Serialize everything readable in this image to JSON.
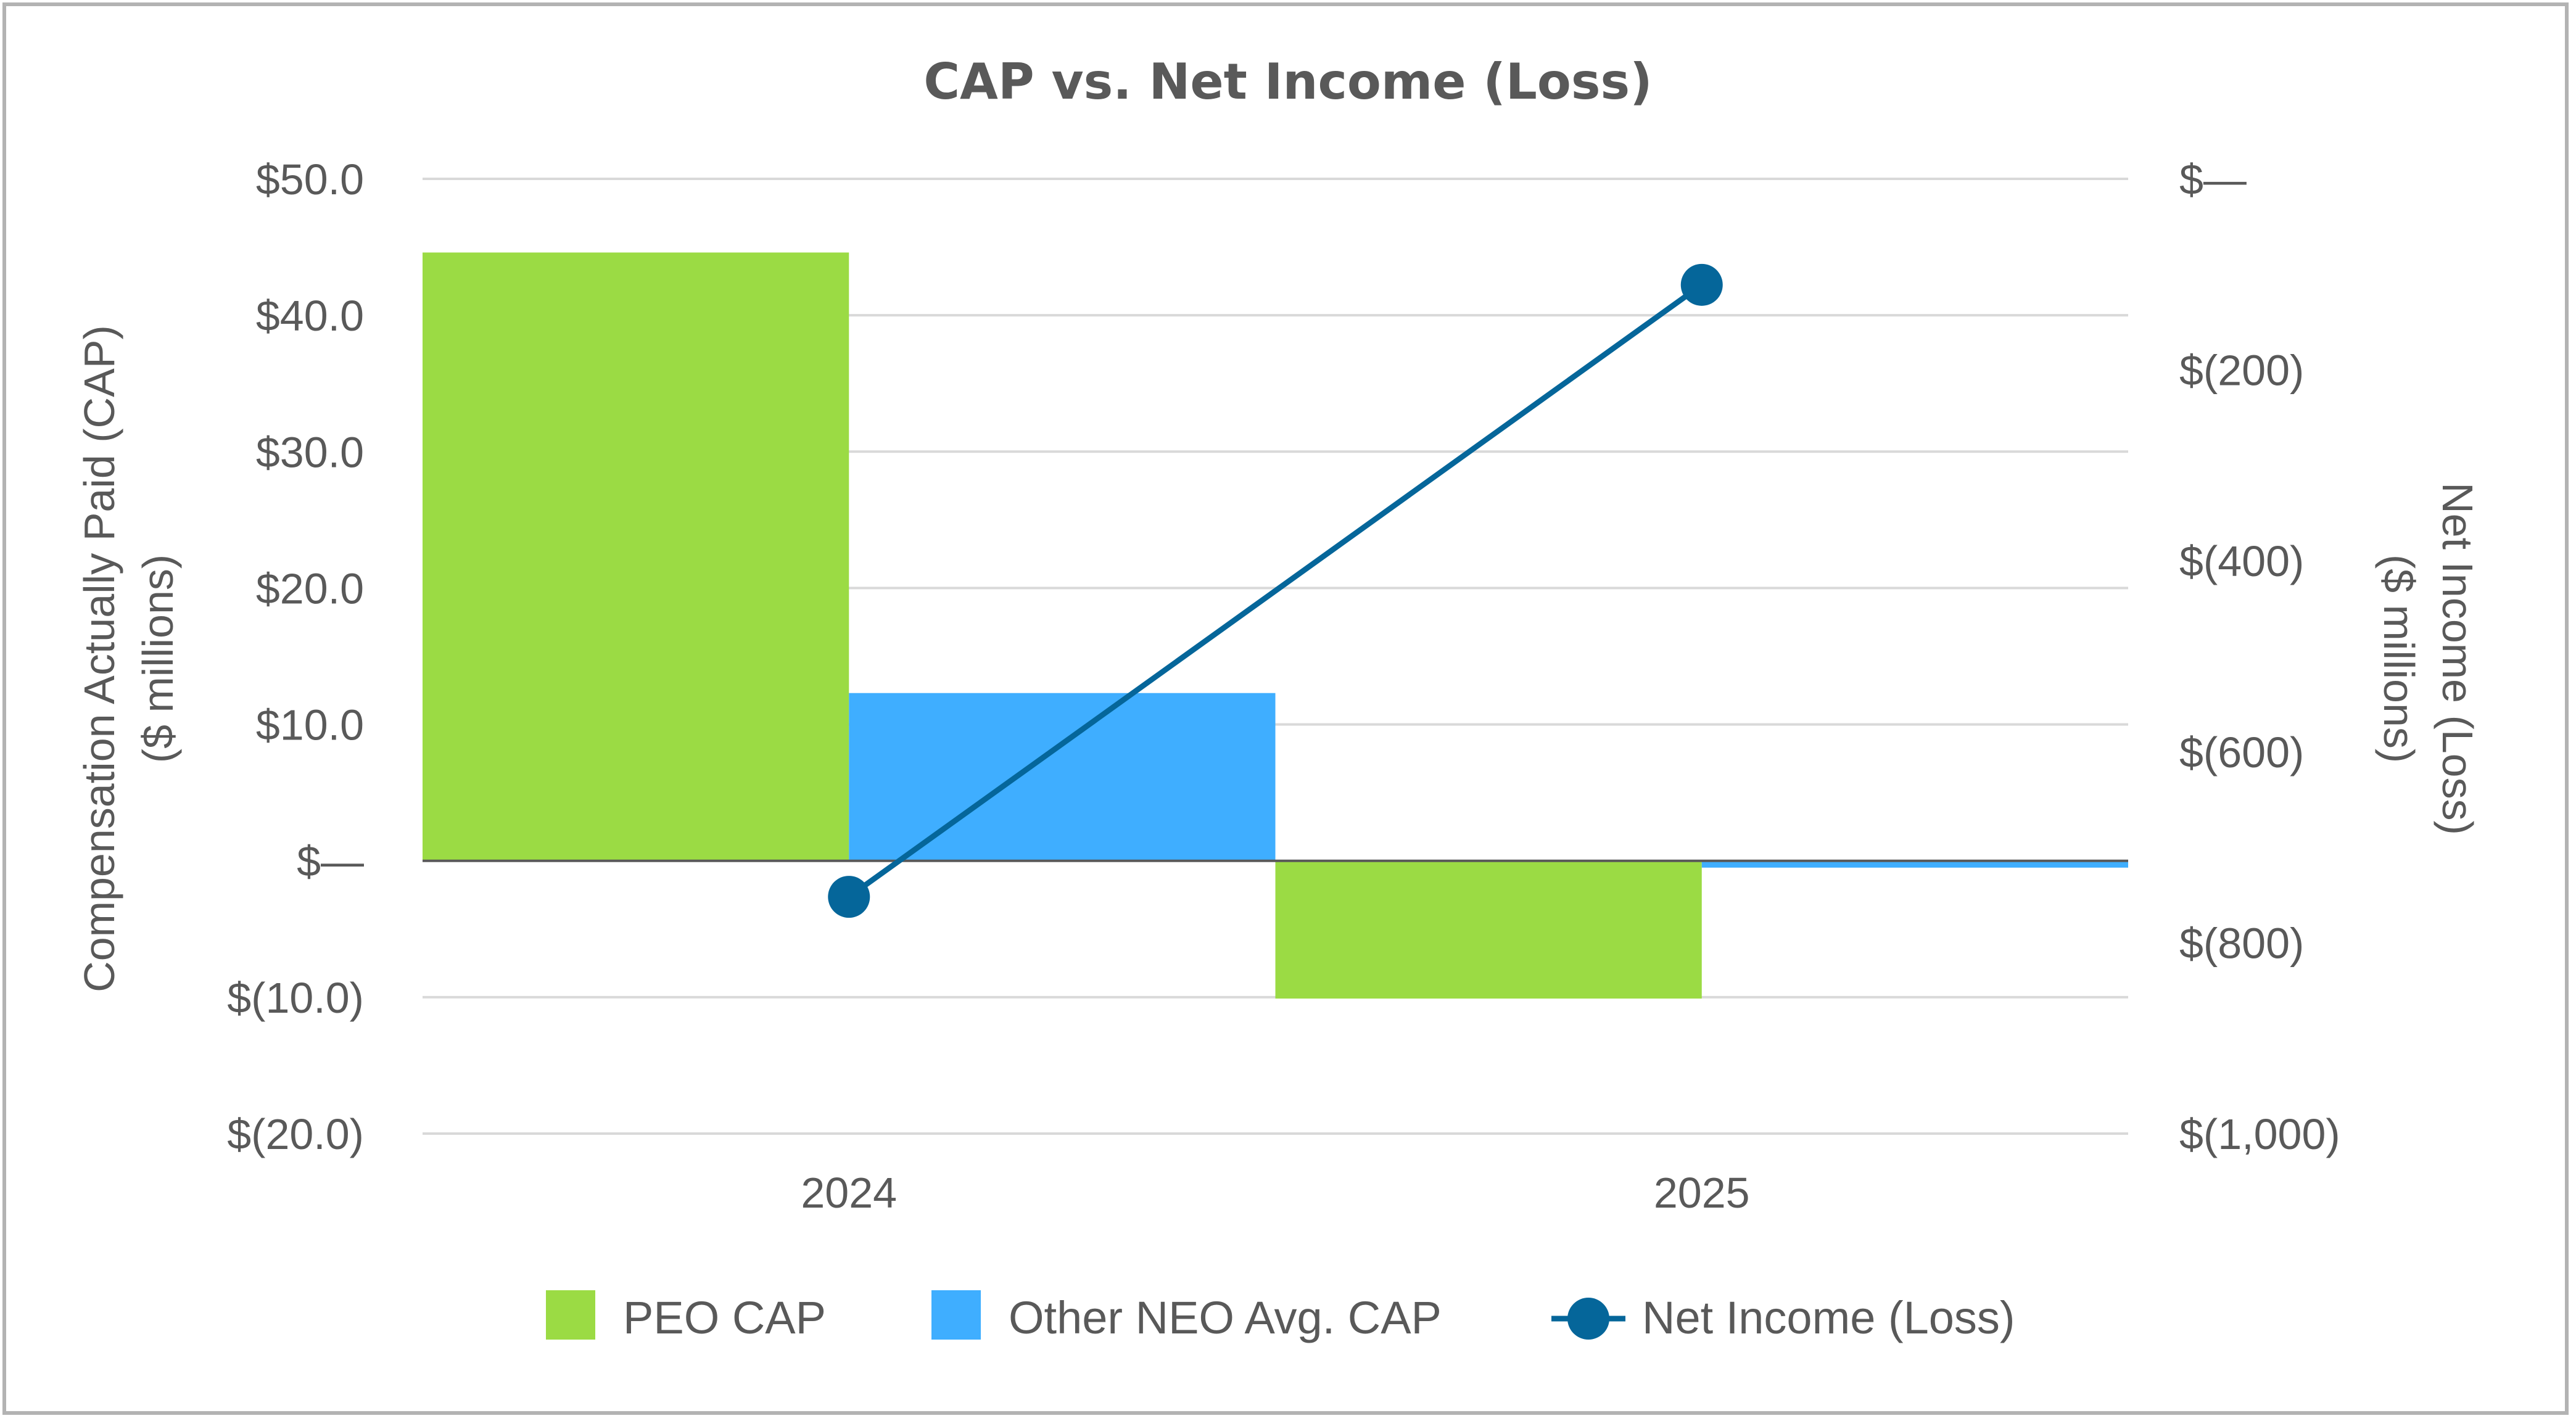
{
  "chart_data": {
    "type": "bar",
    "title": "CAP vs. Net Income (Loss)",
    "categories": [
      "2024",
      "2025"
    ],
    "y_left": {
      "label_line1": "Compensation Actually Paid (CAP)",
      "label_line2": "($ millions)",
      "range": [
        -20,
        50
      ],
      "ticks": [
        50,
        40,
        30,
        20,
        10,
        0,
        -10,
        -20
      ],
      "tick_labels": [
        "$50.0",
        "$40.0",
        "$30.0",
        "$20.0",
        "$10.0",
        "$—",
        "$(10.0)",
        "$(20.0)"
      ]
    },
    "y_right": {
      "label_line1": "Net Income (Loss)",
      "label_line2": "($ millions)",
      "range": [
        -1000,
        0
      ],
      "ticks": [
        0,
        -200,
        -400,
        -600,
        -800,
        -1000
      ],
      "tick_labels": [
        "$—",
        "$(200)",
        "$(400)",
        "$(600)",
        "$(800)",
        "$(1,000)"
      ]
    },
    "series": [
      {
        "name": "PEO CAP",
        "kind": "bar",
        "axis": "left",
        "color": "#9BDB44",
        "values": [
          44.6,
          -10.1
        ]
      },
      {
        "name": "Other NEO Avg. CAP",
        "kind": "bar",
        "axis": "left",
        "color": "#3FAEFF",
        "values": [
          12.3,
          -0.5
        ]
      },
      {
        "name": "Net Income (Loss)",
        "kind": "line",
        "axis": "right",
        "color": "#05669A",
        "values": [
          -752,
          -111
        ]
      }
    ],
    "grid": true,
    "legend_position": "bottom"
  }
}
